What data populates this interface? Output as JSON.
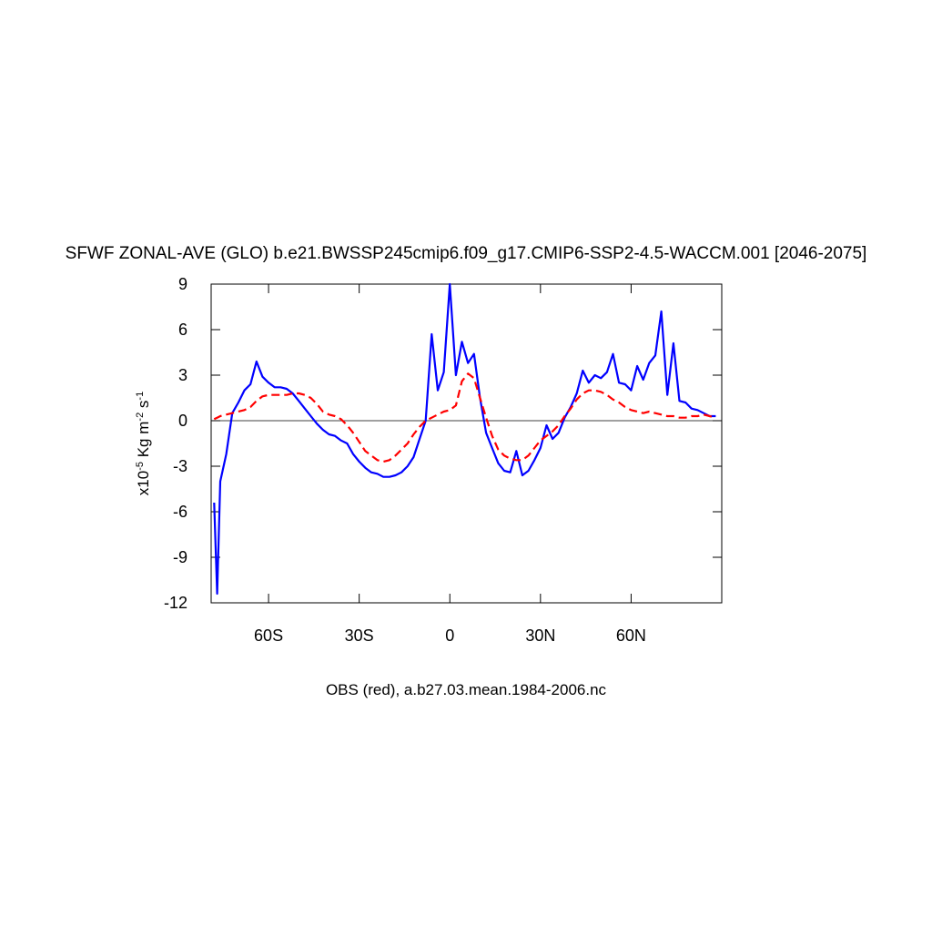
{
  "chart_data": {
    "type": "line",
    "title": "SFWF ZONAL-AVE (GLO) b.e21.BWSSP245cmip6.f09_g17.CMIP6-SSP2-4.5-WACCM.001 [2046-2075]",
    "xlabel": "OBS (red), a.b27.03.mean.1984-2006.nc",
    "ylabel": [
      {
        "text": "x10",
        "sup": "-5"
      },
      {
        "text": " Kg m",
        "sup": "-2"
      },
      {
        "text": " s",
        "sup": "-1"
      }
    ],
    "x": [
      -78,
      -77,
      -76,
      -74,
      -72,
      -70,
      -68,
      -66,
      -64,
      -62,
      -60,
      -58,
      -56,
      -54,
      -52,
      -50,
      -48,
      -46,
      -44,
      -42,
      -40,
      -38,
      -36,
      -34,
      -32,
      -30,
      -28,
      -26,
      -24,
      -22,
      -20,
      -18,
      -16,
      -14,
      -12,
      -10,
      -8,
      -6,
      -4,
      -2,
      0,
      2,
      4,
      6,
      8,
      10,
      12,
      14,
      16,
      18,
      20,
      22,
      24,
      26,
      28,
      30,
      32,
      34,
      36,
      38,
      40,
      42,
      44,
      46,
      48,
      50,
      52,
      54,
      56,
      58,
      60,
      62,
      64,
      66,
      68,
      70,
      72,
      74,
      76,
      78,
      80,
      82,
      84,
      86,
      88
    ],
    "series": [
      {
        "color": "#0000ff",
        "dash": false,
        "values": [
          -5.4,
          -11.4,
          -4.0,
          -2.2,
          0.5,
          1.2,
          2.0,
          2.4,
          3.9,
          2.9,
          2.5,
          2.2,
          2.2,
          2.1,
          1.8,
          1.3,
          0.8,
          0.3,
          -0.2,
          -0.6,
          -0.9,
          -1.0,
          -1.3,
          -1.5,
          -2.2,
          -2.7,
          -3.1,
          -3.4,
          -3.5,
          -3.7,
          -3.7,
          -3.6,
          -3.4,
          -3.0,
          -2.4,
          -1.2,
          0.0,
          5.7,
          2.0,
          3.2,
          9.0,
          3.0,
          5.2,
          3.8,
          4.4,
          1.5,
          -0.8,
          -1.8,
          -2.8,
          -3.3,
          -3.4,
          -2.0,
          -3.6,
          -3.3,
          -2.6,
          -1.8,
          -0.3,
          -1.2,
          -0.8,
          0.2,
          0.9,
          1.8,
          3.3,
          2.5,
          3.0,
          2.8,
          3.2,
          4.4,
          2.5,
          2.4,
          2.0,
          3.6,
          2.7,
          3.8,
          4.3,
          7.2,
          1.7,
          5.1,
          1.3,
          1.2,
          0.8,
          0.7,
          0.5,
          0.3,
          0.3
        ]
      },
      {
        "color": "#ff0000",
        "dash": true,
        "values": [
          0.1,
          0.2,
          0.3,
          0.4,
          0.5,
          0.6,
          0.7,
          0.9,
          1.3,
          1.6,
          1.7,
          1.7,
          1.7,
          1.7,
          1.8,
          1.8,
          1.7,
          1.5,
          1.1,
          0.6,
          0.4,
          0.3,
          0.1,
          -0.3,
          -0.8,
          -1.4,
          -2.0,
          -2.3,
          -2.6,
          -2.7,
          -2.6,
          -2.3,
          -1.9,
          -1.5,
          -0.9,
          -0.4,
          0.0,
          0.2,
          0.4,
          0.6,
          0.7,
          1.0,
          2.6,
          3.1,
          2.8,
          1.5,
          0.2,
          -1.0,
          -1.9,
          -2.3,
          -2.5,
          -2.6,
          -2.6,
          -2.3,
          -1.8,
          -1.3,
          -1.0,
          -0.7,
          -0.3,
          0.3,
          0.8,
          1.4,
          1.8,
          2.0,
          2.0,
          1.9,
          1.7,
          1.4,
          1.2,
          0.9,
          0.7,
          0.6,
          0.5,
          0.6,
          0.5,
          0.4,
          0.3,
          0.3,
          0.2,
          0.2,
          0.3,
          0.3,
          0.4,
          0.3,
          0.2
        ]
      }
    ],
    "xlim": [
      -79,
      90
    ],
    "ylim": [
      -12,
      9
    ],
    "xticks": [
      {
        "value": -60,
        "label": "60S"
      },
      {
        "value": -30,
        "label": "30S"
      },
      0,
      {
        "value": 30,
        "label": "30N"
      },
      {
        "value": 60,
        "label": "60N"
      }
    ],
    "yticks": [
      -12,
      -9,
      -6,
      -3,
      0,
      3,
      6,
      9
    ],
    "zero_line": true
  }
}
